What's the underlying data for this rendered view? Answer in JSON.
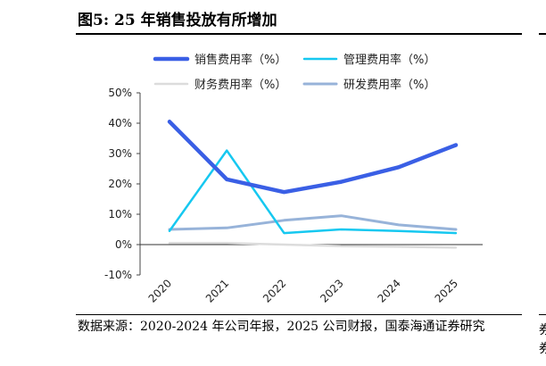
{
  "figure": {
    "title": "图5:  25 年销售投放有所增加",
    "source": "数据来源：2020-2024 年公司年报，2025 公司财报，国泰海通证券研究",
    "right_fragment": "券\n券"
  },
  "chart_data": {
    "type": "line",
    "categories": [
      "2020",
      "2021",
      "2022",
      "2023",
      "2024",
      "2025"
    ],
    "yticks": [
      "50%",
      "40%",
      "30%",
      "20%",
      "10%",
      "0%",
      "-10%"
    ],
    "ylim": [
      -10,
      50
    ],
    "grid": false,
    "legend_position": "top",
    "series": [
      {
        "name": "销售费用率（%）",
        "color": "#3a5fe5",
        "width": 4.5,
        "values": [
          40.5,
          21.5,
          17.3,
          20.7,
          25.5,
          32.8
        ]
      },
      {
        "name": "管理费用率（%）",
        "color": "#16c8f0",
        "width": 2.5,
        "values": [
          4.5,
          31.0,
          3.8,
          5.0,
          4.5,
          3.8
        ]
      },
      {
        "name": "财务费用率（%）",
        "color": "#dcdcdc",
        "width": 2.5,
        "values": [
          0.5,
          0.5,
          0.0,
          -0.5,
          -0.7,
          -1.0
        ]
      },
      {
        "name": "研发费用率（%）",
        "color": "#97b3d9",
        "width": 3,
        "values": [
          5.0,
          5.5,
          8.0,
          9.5,
          6.5,
          5.0
        ]
      }
    ]
  }
}
